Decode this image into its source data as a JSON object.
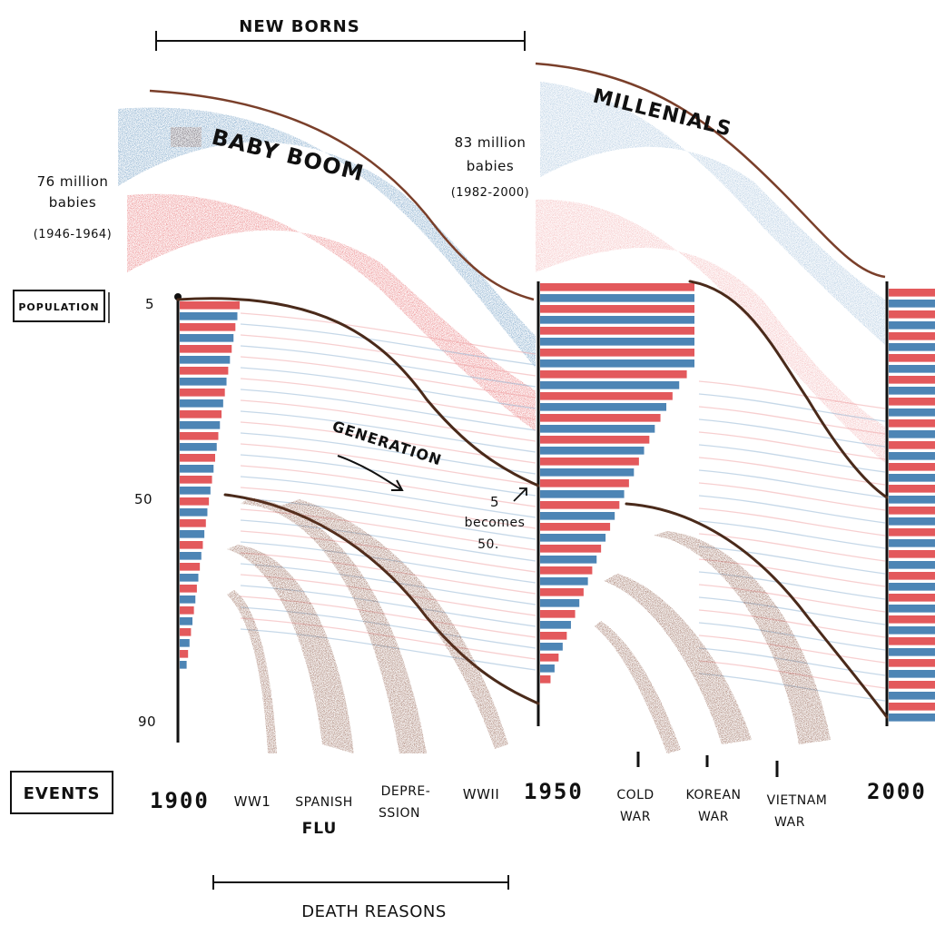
{
  "header": {
    "top_bracket_label": "NEW BORNS",
    "bottom_bracket_label": "DEATH REASONS"
  },
  "cohorts": {
    "baby_boom": {
      "label": "BABY BOOM",
      "note_line1": "76 million",
      "note_line2": "babies",
      "note_line3": "(1946-1964)"
    },
    "millenials": {
      "label": "MILLENIALS",
      "note_line1": "83 million",
      "note_line2": "babies",
      "note_line3": "(1982-2000)"
    }
  },
  "axis": {
    "population_label": "POPULATION",
    "events_label": "EVENTS",
    "age_ticks": [
      "5",
      "50",
      "90"
    ],
    "years": [
      "1900",
      "1950",
      "2000"
    ]
  },
  "annotations": {
    "generation": "GENERATION",
    "becomes_line1": "5",
    "becomes_line2": "becomes",
    "becomes_line3": "50."
  },
  "events": [
    {
      "line1": "WW1",
      "line2": ""
    },
    {
      "line1": "SPANISH",
      "line2": "FLU"
    },
    {
      "line1": "DEPRE-",
      "line2": "SSION"
    },
    {
      "line1": "WWII",
      "line2": ""
    },
    {
      "line1": "COLD",
      "line2": "WAR"
    },
    {
      "line1": "KOREAN",
      "line2": "WAR"
    },
    {
      "line1": "VIETNAM",
      "line2": "WAR"
    }
  ],
  "colors": {
    "blue": "#3a78ad",
    "red": "#e0474a",
    "brown": "#7a3f2a",
    "ink": "#111111",
    "pale_blue": "#8fb3d3",
    "pale_red": "#f0a0a2"
  }
}
